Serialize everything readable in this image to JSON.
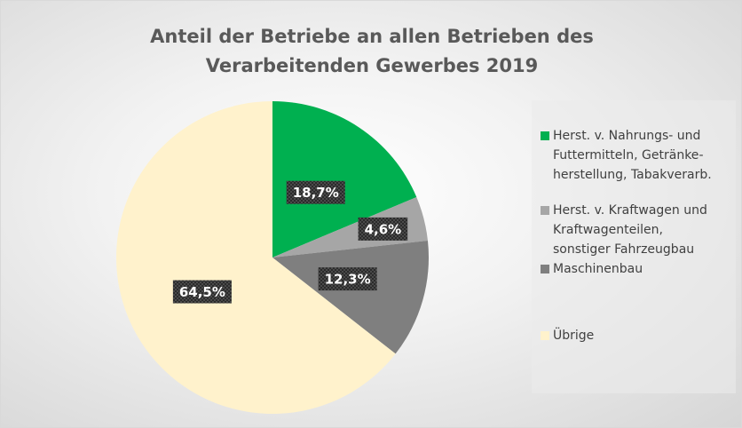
{
  "chart_data": {
    "type": "pie",
    "title": [
      "Anteil der Betriebe an allen Betrieben des",
      "Verarbeitenden Gewerbes 2019"
    ],
    "categories": [
      "Herst. v. Nahrungs- und Futtermitteln, Getränke­herstellung, Tabakverarb.",
      "Herst. v. Kraftwagen und Kraftwagenteilen, sonstiger Fahrzeugbau",
      "Maschinenbau",
      "Übrige"
    ],
    "values": [
      18.7,
      4.6,
      12.3,
      64.5
    ],
    "value_labels": [
      "18,7%",
      "4,6%",
      "12,3%",
      "64,5%"
    ],
    "colors": [
      "#00b050",
      "#a6a6a6",
      "#7f7f7f",
      "#fff2cc"
    ],
    "legend": "right"
  }
}
